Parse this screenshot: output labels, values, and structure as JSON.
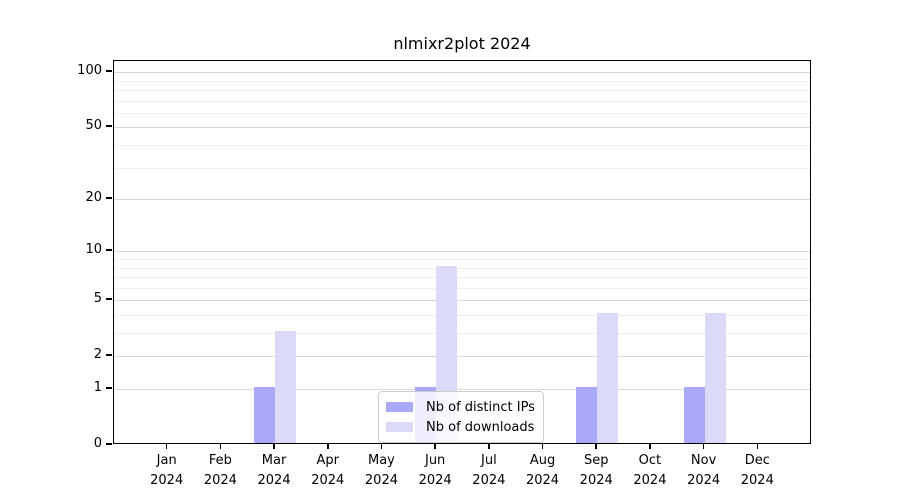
{
  "title": "nlmixr2plot 2024",
  "colors": {
    "distinct_ips_bar": "#a9a9f7",
    "downloads_bar": "#dbdbf9",
    "major_gridline": "#d8d8d8",
    "minor_gridline": "#efefef",
    "axis": "#000000",
    "legend_border": "#cccccc"
  },
  "chart_data": {
    "type": "bar",
    "title": "nlmixr2plot 2024",
    "categories": [
      "Jan 2024",
      "Feb 2024",
      "Mar 2024",
      "Apr 2024",
      "May 2024",
      "Jun 2024",
      "Jul 2024",
      "Aug 2024",
      "Sep 2024",
      "Oct 2024",
      "Nov 2024",
      "Dec 2024"
    ],
    "x_tick_month": [
      "Jan",
      "Feb",
      "Mar",
      "Apr",
      "May",
      "Jun",
      "Jul",
      "Aug",
      "Sep",
      "Oct",
      "Nov",
      "Dec"
    ],
    "x_tick_year": "2024",
    "series": [
      {
        "name": "Nb of distinct IPs",
        "values": [
          0,
          0,
          1,
          0,
          0,
          1,
          0,
          0,
          1,
          0,
          1,
          0
        ],
        "color": "#a9a9f7"
      },
      {
        "name": "Nb of downloads",
        "values": [
          0,
          0,
          3,
          0,
          0,
          8,
          0,
          0,
          4,
          0,
          4,
          0
        ],
        "color": "#dbdbf9"
      }
    ],
    "xlabel": "",
    "ylabel": "",
    "y_scale": "log1p",
    "y_major_ticks": [
      0,
      1,
      2,
      5,
      10,
      20,
      50,
      100
    ],
    "y_minor_ticks": [
      3,
      4,
      6,
      7,
      8,
      9,
      30,
      40,
      60,
      70,
      80,
      90
    ],
    "ylim": [
      0,
      115
    ],
    "grid": "on",
    "legend_position": "lower center"
  }
}
